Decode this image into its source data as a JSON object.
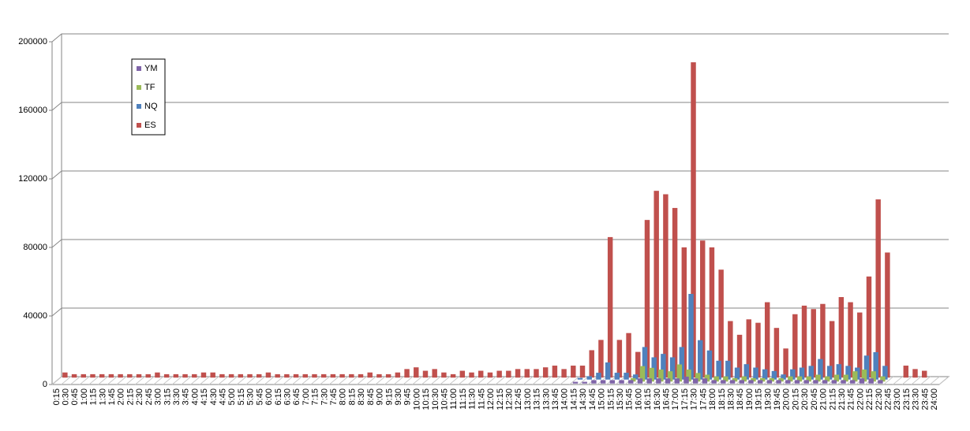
{
  "chart_data": {
    "type": "bar3d",
    "categories": [
      "0:15",
      "0:30",
      "0:45",
      "1:00",
      "1:15",
      "1:30",
      "1:45",
      "2:00",
      "2:15",
      "2:30",
      "2:45",
      "3:00",
      "3:15",
      "3:30",
      "3:45",
      "4:00",
      "4:15",
      "4:30",
      "4:45",
      "5:00",
      "5:15",
      "5:30",
      "5:45",
      "6:00",
      "6:15",
      "6:30",
      "6:45",
      "7:00",
      "7:15",
      "7:30",
      "7:45",
      "8:00",
      "8:15",
      "8:30",
      "8:45",
      "9:00",
      "9:15",
      "9:30",
      "9:45",
      "10:00",
      "10:15",
      "10:30",
      "10:45",
      "11:00",
      "11:15",
      "11:30",
      "11:45",
      "12:00",
      "12:15",
      "12:30",
      "12:45",
      "13:00",
      "13:15",
      "13:30",
      "13:45",
      "14:00",
      "14:15",
      "14:30",
      "14:45",
      "15:00",
      "15:15",
      "15:30",
      "15:45",
      "16:00",
      "16:15",
      "16:30",
      "16:45",
      "17:00",
      "17:15",
      "17:30",
      "17:45",
      "18:00",
      "18:15",
      "18:30",
      "18:45",
      "19:00",
      "19:15",
      "19:30",
      "19:45",
      "20:00",
      "20:15",
      "20:30",
      "20:45",
      "21:00",
      "21:15",
      "21:30",
      "21:45",
      "22:00",
      "22:15",
      "22:30",
      "22:45",
      "23:00",
      "23:15",
      "23:30",
      "23:45",
      "24:00"
    ],
    "series": [
      {
        "name": "YM",
        "color": "#7f64a8",
        "values": [
          0,
          0,
          0,
          0,
          0,
          0,
          0,
          0,
          0,
          0,
          0,
          0,
          0,
          0,
          0,
          0,
          0,
          0,
          0,
          0,
          0,
          0,
          0,
          0,
          0,
          0,
          0,
          0,
          0,
          0,
          0,
          0,
          0,
          0,
          0,
          0,
          0,
          0,
          0,
          0,
          0,
          0,
          0,
          0,
          0,
          0,
          0,
          0,
          0,
          0,
          0,
          0,
          0,
          0,
          0,
          0,
          1000,
          1000,
          2000,
          2000,
          2000,
          2000,
          2000,
          3000,
          3000,
          3000,
          3000,
          3000,
          4000,
          3000,
          3000,
          2000,
          2000,
          2000,
          2000,
          2000,
          2000,
          2000,
          2000,
          2000,
          2000,
          2000,
          2000,
          2000,
          2000,
          2000,
          2000,
          3000,
          3000,
          2000,
          0,
          0,
          0,
          0,
          0,
          0
        ]
      },
      {
        "name": "TF",
        "color": "#9bbb59",
        "values": [
          0,
          0,
          0,
          0,
          0,
          0,
          0,
          0,
          0,
          0,
          0,
          0,
          0,
          0,
          0,
          0,
          0,
          0,
          0,
          0,
          0,
          0,
          0,
          0,
          0,
          0,
          0,
          0,
          0,
          0,
          0,
          0,
          0,
          0,
          0,
          0,
          0,
          0,
          0,
          0,
          0,
          0,
          0,
          0,
          0,
          0,
          0,
          0,
          0,
          0,
          0,
          0,
          0,
          0,
          0,
          0,
          0,
          0,
          0,
          0,
          0,
          0,
          2000,
          9000,
          8000,
          7000,
          6000,
          10000,
          7000,
          5000,
          4000,
          3000,
          3000,
          2000,
          3000,
          2000,
          2000,
          2000,
          2000,
          3000,
          3000,
          3000,
          4000,
          3000,
          4000,
          4000,
          6000,
          7000,
          6000,
          3000,
          0,
          0,
          0,
          0,
          0,
          0
        ]
      },
      {
        "name": "NQ",
        "color": "#4f81bd",
        "values": [
          0,
          0,
          0,
          0,
          0,
          0,
          0,
          0,
          0,
          0,
          0,
          0,
          0,
          0,
          0,
          0,
          0,
          0,
          0,
          0,
          0,
          0,
          0,
          0,
          0,
          0,
          0,
          0,
          0,
          0,
          0,
          0,
          0,
          0,
          0,
          0,
          0,
          0,
          0,
          0,
          0,
          0,
          0,
          0,
          0,
          0,
          0,
          0,
          0,
          0,
          0,
          0,
          0,
          0,
          0,
          0,
          1000,
          2000,
          4000,
          10000,
          4000,
          4000,
          3000,
          19000,
          13000,
          15000,
          13000,
          19000,
          50000,
          23000,
          17000,
          11000,
          11000,
          7000,
          9000,
          7000,
          6000,
          5000,
          3000,
          6000,
          7000,
          8000,
          12000,
          8000,
          9000,
          8000,
          7000,
          14000,
          16000,
          8000,
          0,
          0,
          0,
          0,
          0,
          0
        ]
      },
      {
        "name": "ES",
        "color": "#c0504d",
        "values": [
          3000,
          2000,
          2000,
          2000,
          2000,
          2000,
          2000,
          2000,
          2000,
          2000,
          3000,
          2000,
          2000,
          2000,
          2000,
          3000,
          3000,
          2000,
          2000,
          2000,
          2000,
          2000,
          3000,
          2000,
          2000,
          2000,
          2000,
          2000,
          2000,
          2000,
          2000,
          2000,
          2000,
          3000,
          2000,
          2000,
          3000,
          5000,
          6000,
          4000,
          5000,
          3000,
          2000,
          4000,
          3000,
          4000,
          3000,
          4000,
          4000,
          5000,
          5000,
          5000,
          6000,
          7000,
          5000,
          7000,
          7000,
          16000,
          22000,
          82000,
          22000,
          26000,
          15000,
          92000,
          109000,
          107000,
          99000,
          76000,
          184000,
          80000,
          76000,
          63000,
          33000,
          25000,
          34000,
          32000,
          44000,
          29000,
          17000,
          37000,
          42000,
          40000,
          43000,
          33000,
          47000,
          44000,
          38000,
          59000,
          104000,
          73000,
          0,
          7000,
          5000,
          4000,
          0,
          0
        ]
      }
    ],
    "ylim": [
      0,
      200000
    ],
    "yticks": [
      0,
      40000,
      80000,
      120000,
      160000,
      200000
    ],
    "grid": true,
    "legend": "upper-left"
  }
}
